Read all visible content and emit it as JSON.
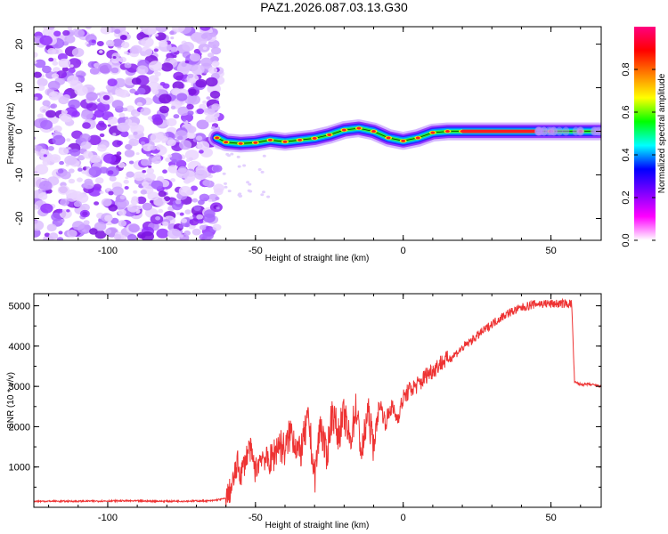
{
  "figure_title": "PAZ1.2026.087.03.13.G30",
  "chart_data": [
    {
      "type": "heatmap",
      "title": "PAZ1.2026.087.03.13.G30",
      "xlabel": "Height of straight line (km)",
      "ylabel": "Frequency (Hz)",
      "xlim": [
        -125,
        67
      ],
      "ylim": [
        -25,
        24
      ],
      "xticks": [
        -100,
        -50,
        0,
        50
      ],
      "yticks": [
        -20,
        -10,
        0,
        10,
        20
      ],
      "noise_region_x": [
        -125,
        -62
      ],
      "signal_ridge": [
        {
          "x": -63,
          "f": -1.5
        },
        {
          "x": -60,
          "f": -2.5
        },
        {
          "x": -55,
          "f": -2.8
        },
        {
          "x": -50,
          "f": -2.6
        },
        {
          "x": -45,
          "f": -2.0
        },
        {
          "x": -40,
          "f": -2.4
        },
        {
          "x": -35,
          "f": -2.0
        },
        {
          "x": -30,
          "f": -1.6
        },
        {
          "x": -25,
          "f": -0.8
        },
        {
          "x": -20,
          "f": 0.3
        },
        {
          "x": -15,
          "f": 0.7
        },
        {
          "x": -10,
          "f": 0.0
        },
        {
          "x": -5,
          "f": -1.5
        },
        {
          "x": 0,
          "f": -2.2
        },
        {
          "x": 5,
          "f": -1.5
        },
        {
          "x": 10,
          "f": -0.3
        },
        {
          "x": 15,
          "f": 0.0
        },
        {
          "x": 20,
          "f": 0.0
        },
        {
          "x": 30,
          "f": 0.0
        },
        {
          "x": 40,
          "f": 0.0
        },
        {
          "x": 50,
          "f": 0.0
        },
        {
          "x": 60,
          "f": 0.0
        },
        {
          "x": 67,
          "f": 0.0
        }
      ],
      "colorbar": {
        "label": "Normalized spectral amplitude",
        "ticks": [
          "0.0",
          "0.2",
          "0.4",
          "0.6",
          "0.8"
        ],
        "range": [
          0,
          1
        ],
        "colors": [
          "#ffffff",
          "#ff00ff",
          "#8000ff",
          "#0000ff",
          "#00ffff",
          "#00ff00",
          "#ffff00",
          "#ff8000",
          "#ff0000",
          "#ff0080"
        ]
      }
    },
    {
      "type": "line",
      "xlabel": "Height of straight line (km)",
      "ylabel": "SNR (10 * v/v)",
      "xlim": [
        -125,
        67
      ],
      "ylim": [
        0,
        5300
      ],
      "xticks": [
        -100,
        -50,
        0,
        50
      ],
      "yticks": [
        1000,
        2000,
        3000,
        4000,
        5000
      ],
      "line_color": "#ee3333",
      "series": [
        {
          "name": "SNR",
          "x": [
            -125,
            -110,
            -95,
            -80,
            -65,
            -60,
            -58,
            -56,
            -55,
            -52,
            -50,
            -48,
            -45,
            -42,
            -40,
            -38,
            -35,
            -32,
            -30,
            -28,
            -26,
            -24,
            -22,
            -20,
            -18,
            -16,
            -14,
            -12,
            -10,
            -8,
            -6,
            -4,
            -2,
            0,
            2,
            4,
            6,
            8,
            10,
            13,
            16,
            20,
            25,
            30,
            35,
            40,
            45,
            50,
            55,
            57,
            58,
            60,
            63,
            67
          ],
          "values": [
            150,
            150,
            160,
            150,
            160,
            220,
            500,
            1100,
            800,
            1500,
            900,
            1300,
            1100,
            1600,
            1400,
            1900,
            1300,
            2200,
            700,
            2100,
            1200,
            2400,
            1800,
            2300,
            1600,
            2500,
            1300,
            2400,
            1500,
            2600,
            2100,
            2500,
            2200,
            2700,
            2900,
            3000,
            3100,
            3300,
            3400,
            3600,
            3700,
            3950,
            4250,
            4550,
            4800,
            4950,
            5050,
            5050,
            5050,
            5050,
            3100,
            3050,
            3050,
            3000
          ]
        }
      ]
    }
  ]
}
